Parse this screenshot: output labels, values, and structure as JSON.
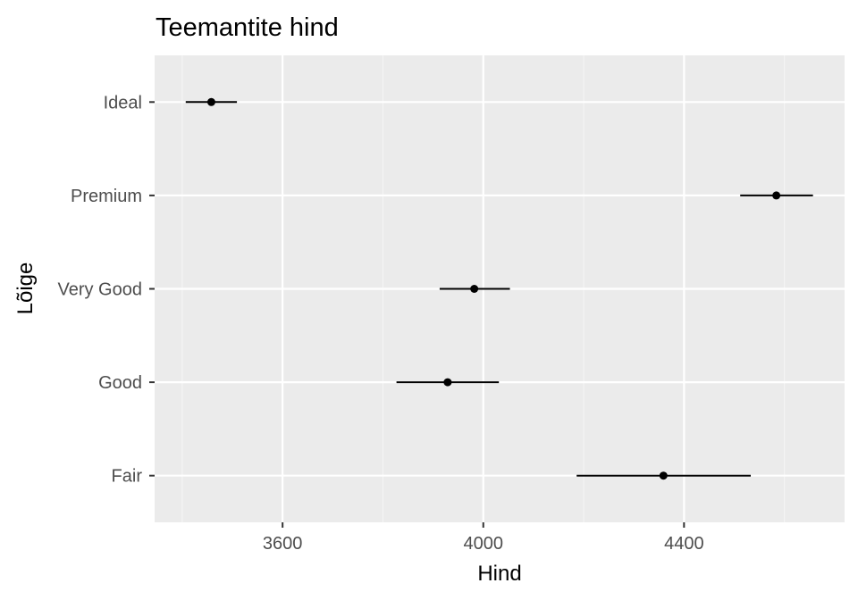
{
  "chart_data": {
    "type": "scatter",
    "subtype": "point-with-horizontal-errorbars",
    "title": "Teemantite hind",
    "xlabel": "Hind",
    "ylabel": "Lõige",
    "categories": [
      "Fair",
      "Good",
      "Very Good",
      "Premium",
      "Ideal"
    ],
    "points": [
      {
        "category": "Fair",
        "x": 4359,
        "xmin": 4186,
        "xmax": 4533
      },
      {
        "category": "Good",
        "x": 3929,
        "xmin": 3827,
        "xmax": 4031
      },
      {
        "category": "Very Good",
        "x": 3982,
        "xmin": 3913,
        "xmax": 4053
      },
      {
        "category": "Premium",
        "x": 4584,
        "xmin": 4512,
        "xmax": 4657
      },
      {
        "category": "Ideal",
        "x": 3458,
        "xmin": 3407,
        "xmax": 3509
      }
    ],
    "xticks": [
      3600,
      4000,
      4400
    ],
    "xlim": [
      3345,
      4720
    ],
    "grid": true,
    "legend": "none",
    "colors": {
      "panel_background": "#ebebeb",
      "grid_major": "#ffffff",
      "grid_minor": "#f5f5f5",
      "point": "#000000",
      "tick_text": "#4d4d4d"
    }
  }
}
